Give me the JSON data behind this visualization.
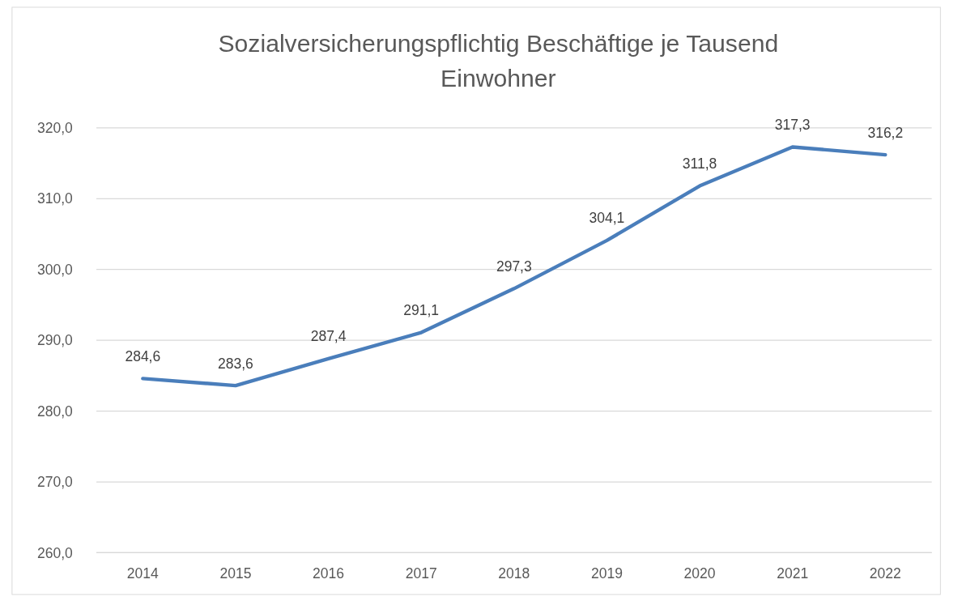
{
  "chart_data": {
    "type": "line",
    "title": "Sozialversicherungspflichtig Beschäftige je Tausend\nEinwohner",
    "categories": [
      "2014",
      "2015",
      "2016",
      "2017",
      "2018",
      "2019",
      "2020",
      "2021",
      "2022"
    ],
    "series": [
      {
        "color": "#4a7ebb",
        "values": [
          284.6,
          283.6,
          287.4,
          291.1,
          297.3,
          304.1,
          311.8,
          317.3,
          316.2
        ],
        "value_labels": [
          "284,6",
          "283,6",
          "287,4",
          "291,1",
          "297,3",
          "304,1",
          "311,8",
          "317,3",
          "316,2"
        ]
      }
    ],
    "ylim": [
      260,
      320
    ],
    "yticks": [
      {
        "value": 260,
        "label": "260,0"
      },
      {
        "value": 270,
        "label": "270,0"
      },
      {
        "value": 280,
        "label": "280,0"
      },
      {
        "value": 290,
        "label": "290,0"
      },
      {
        "value": 300,
        "label": "300,0"
      },
      {
        "value": 310,
        "label": "310,0"
      },
      {
        "value": 320,
        "label": "320,0"
      }
    ],
    "grid": "y",
    "marker": "none",
    "line_style": "solid"
  }
}
